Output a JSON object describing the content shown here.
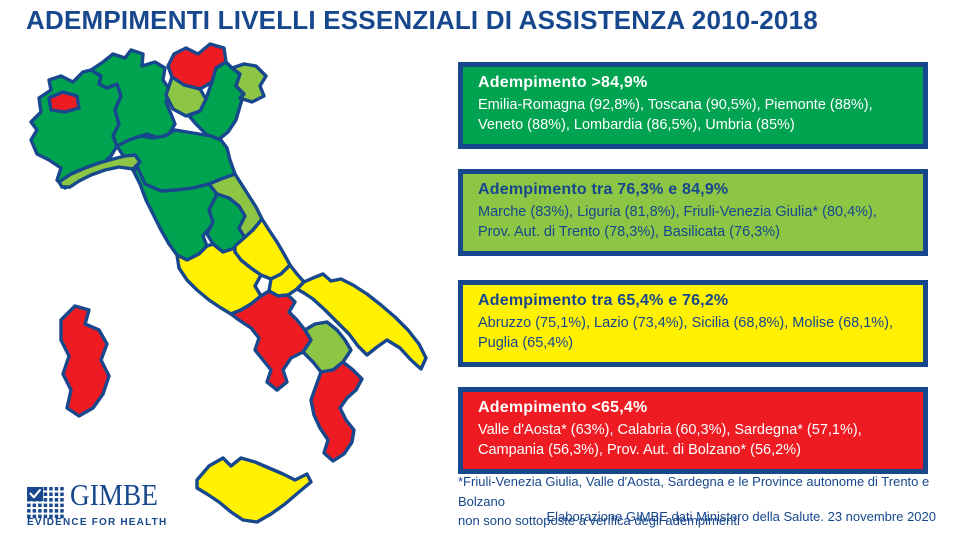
{
  "title": "ADEMPIMENTI LIVELLI ESSENZIALI DI ASSISTENZA 2010-2018",
  "colors": {
    "navy": "#17478C",
    "green": "#00A350",
    "light_green": "#8DC645",
    "yellow": "#FFF100",
    "red": "#EE1B23",
    "white": "#FFFFFF",
    "background": "#FFFFFF"
  },
  "legend": [
    {
      "id": "high",
      "title": "Adempimento >84,9%",
      "lines": [
        "Emilia-Romagna (92,8%), Toscana (90,5%), Piemonte (88%),",
        "Veneto (88%), Lombardia (86,5%), Umbria (85%)"
      ],
      "bg": "#00A350",
      "text": "#FFFFFF"
    },
    {
      "id": "mid_high",
      "title": "Adempimento tra 76,3% e 84,9%",
      "lines": [
        "Marche (83%), Liguria (81,8%), Friuli-Venezia Giulia* (80,4%),",
        "Prov. Aut. di Trento (78,3%), Basilicata (76,3%)"
      ],
      "bg": "#8DC645",
      "text": "#17478C"
    },
    {
      "id": "mid_low",
      "title": "Adempimento tra 65,4% e 76,2%",
      "lines": [
        "Abruzzo (75,1%), Lazio (73,4%), Sicilia (68,8%), Molise (68,1%),",
        "Puglia (65,4%)"
      ],
      "bg": "#FFF100",
      "text": "#17478C"
    },
    {
      "id": "low",
      "title": "Adempimento <65,4%",
      "lines": [
        "Valle d'Aosta* (63%), Calabria (60,3%), Sardegna* (57,1%),",
        "Campania (56,3%), Prov. Aut. di Bolzano* (56,2%)"
      ],
      "bg": "#EE1B23",
      "text": "#FFFFFF"
    }
  ],
  "map": {
    "regions": [
      {
        "id": "piemonte",
        "name": "Piemonte",
        "band": "high"
      },
      {
        "id": "valledaosta",
        "name": "Valle d'Aosta",
        "band": "low"
      },
      {
        "id": "lombardia",
        "name": "Lombardia",
        "band": "high"
      },
      {
        "id": "bolzano",
        "name": "Prov. Aut. di Bolzano",
        "band": "low"
      },
      {
        "id": "trento",
        "name": "Prov. Aut. di Trento",
        "band": "mid_high"
      },
      {
        "id": "veneto",
        "name": "Veneto",
        "band": "high"
      },
      {
        "id": "friuli",
        "name": "Friuli-Venezia Giulia",
        "band": "mid_high"
      },
      {
        "id": "liguria",
        "name": "Liguria",
        "band": "mid_high"
      },
      {
        "id": "emilia",
        "name": "Emilia-Romagna",
        "band": "high"
      },
      {
        "id": "toscana",
        "name": "Toscana",
        "band": "high"
      },
      {
        "id": "umbria",
        "name": "Umbria",
        "band": "high"
      },
      {
        "id": "marche",
        "name": "Marche",
        "band": "mid_high"
      },
      {
        "id": "lazio",
        "name": "Lazio",
        "band": "mid_low"
      },
      {
        "id": "abruzzo",
        "name": "Abruzzo",
        "band": "mid_low"
      },
      {
        "id": "molise",
        "name": "Molise",
        "band": "mid_low"
      },
      {
        "id": "campania",
        "name": "Campania",
        "band": "low"
      },
      {
        "id": "puglia",
        "name": "Puglia",
        "band": "mid_low"
      },
      {
        "id": "basilicata",
        "name": "Basilicata",
        "band": "mid_high"
      },
      {
        "id": "calabria",
        "name": "Calabria",
        "band": "low"
      },
      {
        "id": "sicilia",
        "name": "Sicilia",
        "band": "mid_low"
      },
      {
        "id": "sardegna",
        "name": "Sardegna",
        "band": "low"
      }
    ]
  },
  "chart_data": {
    "type": "heatmap",
    "variant": "choropleth_map_italy",
    "title": "ADEMPIMENTI LIVELLI ESSENZIALI DI ASSISTENZA 2010-2018",
    "unit": "percent",
    "legend_position": "right",
    "bands": [
      {
        "id": "high",
        "label": "Adempimento >84,9%",
        "color": "#00A350"
      },
      {
        "id": "mid_high",
        "label": "Adempimento tra 76,3% e 84,9%",
        "color": "#8DC645"
      },
      {
        "id": "mid_low",
        "label": "Adempimento tra 65,4% e 76,2%",
        "color": "#FFF100"
      },
      {
        "id": "low",
        "label": "Adempimento <65,4%",
        "color": "#EE1B23"
      }
    ],
    "regions": [
      {
        "name": "Emilia-Romagna",
        "value": 92.8,
        "band": "high"
      },
      {
        "name": "Toscana",
        "value": 90.5,
        "band": "high"
      },
      {
        "name": "Piemonte",
        "value": 88,
        "band": "high"
      },
      {
        "name": "Veneto",
        "value": 88,
        "band": "high"
      },
      {
        "name": "Lombardia",
        "value": 86.5,
        "band": "high"
      },
      {
        "name": "Umbria",
        "value": 85,
        "band": "high"
      },
      {
        "name": "Marche",
        "value": 83,
        "band": "mid_high"
      },
      {
        "name": "Liguria",
        "value": 81.8,
        "band": "mid_high"
      },
      {
        "name": "Friuli-Venezia Giulia",
        "value": 80.4,
        "band": "mid_high"
      },
      {
        "name": "Prov. Aut. di Trento",
        "value": 78.3,
        "band": "mid_high"
      },
      {
        "name": "Basilicata",
        "value": 76.3,
        "band": "mid_high"
      },
      {
        "name": "Abruzzo",
        "value": 75.1,
        "band": "mid_low"
      },
      {
        "name": "Lazio",
        "value": 73.4,
        "band": "mid_low"
      },
      {
        "name": "Sicilia",
        "value": 68.8,
        "band": "mid_low"
      },
      {
        "name": "Molise",
        "value": 68.1,
        "band": "mid_low"
      },
      {
        "name": "Puglia",
        "value": 65.4,
        "band": "mid_low"
      },
      {
        "name": "Valle d'Aosta",
        "value": 63,
        "band": "low"
      },
      {
        "name": "Calabria",
        "value": 60.3,
        "band": "low"
      },
      {
        "name": "Sardegna",
        "value": 57.1,
        "band": "low"
      },
      {
        "name": "Campania",
        "value": 56.3,
        "band": "low"
      },
      {
        "name": "Prov. Aut. di Bolzano",
        "value": 56.2,
        "band": "low"
      }
    ]
  },
  "footnote": {
    "lines": [
      "*Friuli-Venezia Giulia, Valle d'Aosta, Sardegna e le Province autonome di Trento e Bolzano",
      "non sono sottoposte a verifica degli adempimenti"
    ]
  },
  "attribution": "Elaborazione GIMBE dati Ministero della Salute. 23 novembre 2020",
  "logo": {
    "name": "GIMBE",
    "tagline": "EVIDENCE FOR HEALTH"
  }
}
